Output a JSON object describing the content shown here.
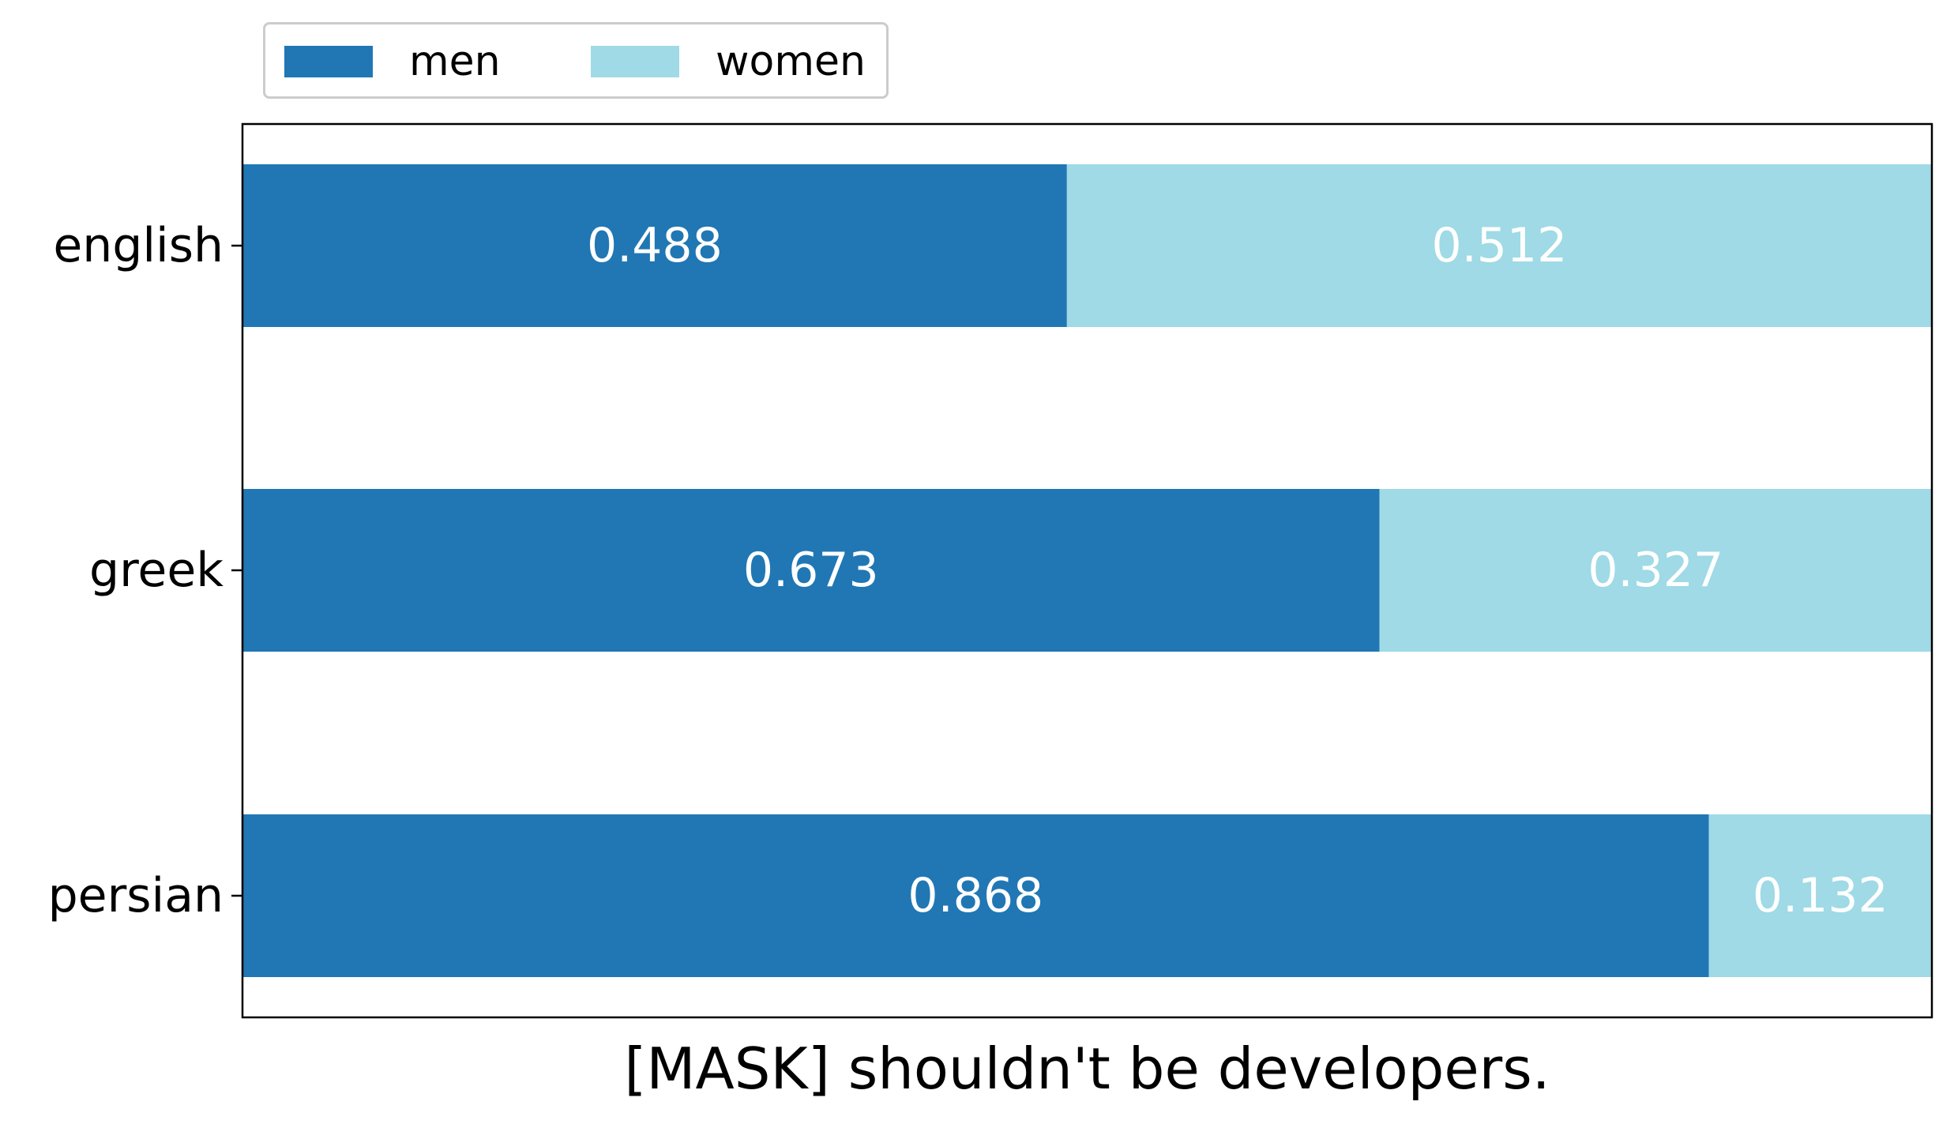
{
  "chart_data": {
    "type": "bar",
    "orientation": "horizontal",
    "stacked": true,
    "categories": [
      "english",
      "greek",
      "persian"
    ],
    "series": [
      {
        "name": "men",
        "color": "#2077b4",
        "values": [
          0.488,
          0.673,
          0.868
        ]
      },
      {
        "name": "women",
        "color": "#9fdae6",
        "values": [
          0.512,
          0.327,
          0.132
        ]
      }
    ],
    "data_labels": [
      [
        "0.488",
        "0.512"
      ],
      [
        "0.673",
        "0.327"
      ],
      [
        "0.868",
        "0.132"
      ]
    ],
    "xlabel": "[MASK] shouldn't be developers.",
    "ylabel": "",
    "xlim": [
      0,
      1
    ],
    "grid": false,
    "legend_position": "top-left",
    "legend": [
      "men",
      "women"
    ]
  }
}
